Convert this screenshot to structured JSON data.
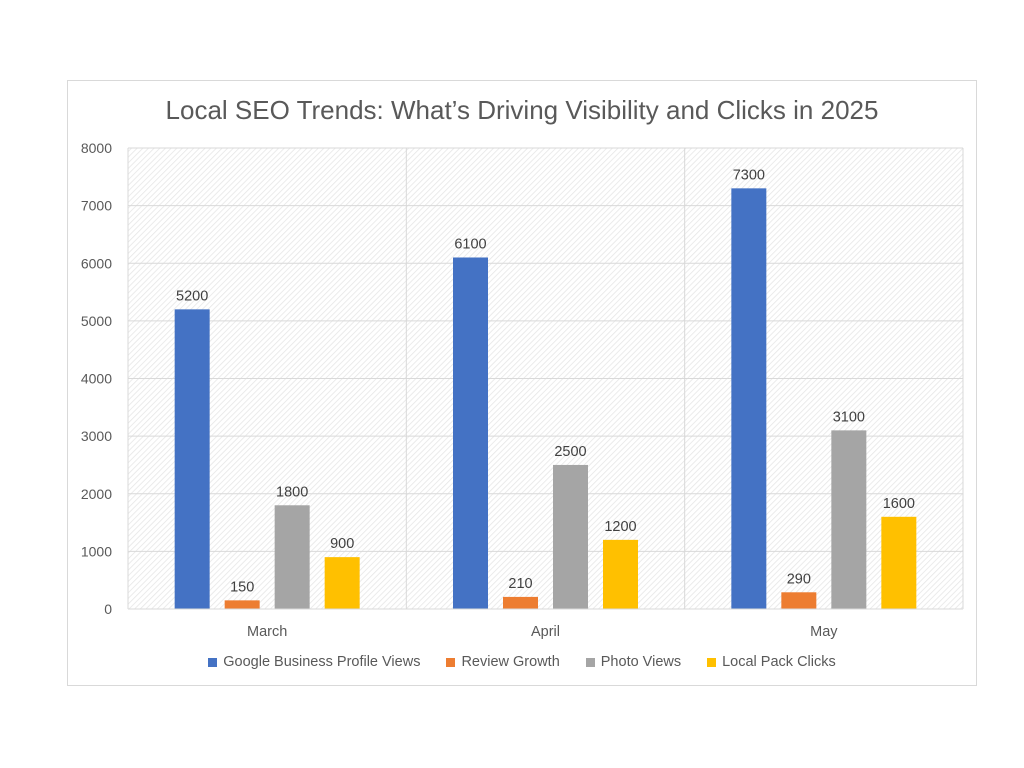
{
  "chart_data": {
    "type": "bar",
    "title": "Local SEO Trends: What’s Driving Visibility and Clicks in 2025",
    "categories": [
      "March",
      "April",
      "May"
    ],
    "series": [
      {
        "name": "Google Business Profile Views",
        "color": "#4472c4",
        "values": [
          5200,
          6100,
          7300
        ]
      },
      {
        "name": "Review Growth",
        "color": "#ed7d31",
        "values": [
          150,
          210,
          290
        ]
      },
      {
        "name": "Photo Views",
        "color": "#a5a5a5",
        "values": [
          1800,
          2500,
          3100
        ]
      },
      {
        "name": "Local Pack Clicks",
        "color": "#ffc000",
        "values": [
          900,
          1200,
          1600
        ]
      }
    ],
    "ylim": [
      0,
      8000
    ],
    "yticks": [
      0,
      1000,
      2000,
      3000,
      4000,
      5000,
      6000,
      7000,
      8000
    ],
    "xlabel": "",
    "ylabel": "",
    "grid": true,
    "legend_position": "bottom"
  }
}
